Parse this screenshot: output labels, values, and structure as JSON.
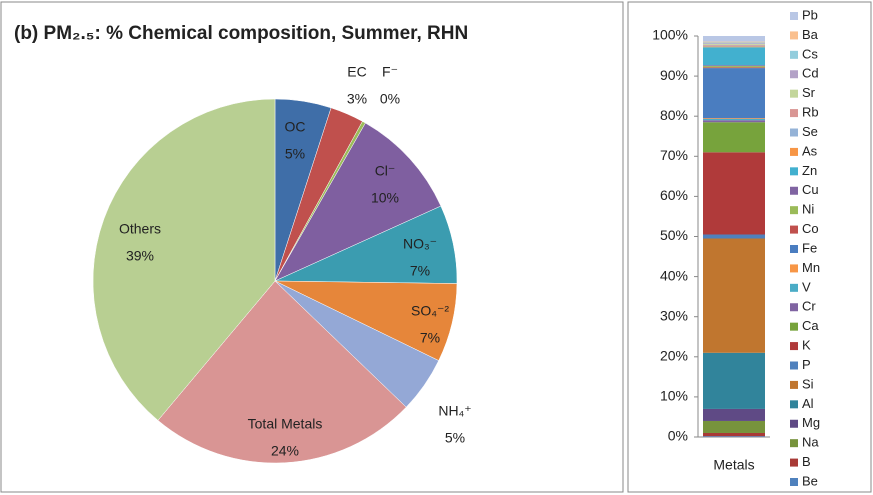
{
  "chart_data": [
    {
      "type": "pie",
      "title": "(b) PM₂.₅: % Chemical composition,  Summer, RHN",
      "categories": [
        "OC",
        "EC",
        "F⁻",
        "Cl⁻",
        "NO₃⁻",
        "SO₄⁻²",
        "NH₄⁺",
        "Total Metals",
        "Others"
      ],
      "values": [
        5,
        3,
        0.3,
        10,
        7,
        7,
        5,
        24,
        39
      ],
      "value_labels": [
        "5%",
        "3%",
        "0%",
        "10%",
        "7%",
        "7%",
        "5%",
        "24%",
        "39%"
      ],
      "colors": [
        "#3f6ea8",
        "#c0504d",
        "#9bbb59",
        "#7f5fa0",
        "#3b9cb0",
        "#e6863a",
        "#94a8d6",
        "#d99594",
        "#b8cf92"
      ]
    },
    {
      "type": "bar",
      "stacked": true,
      "categories": [
        "Metals"
      ],
      "ylim": [
        0,
        100
      ],
      "yticks": [
        {
          "value": 0,
          "label": "0%"
        },
        {
          "value": 10,
          "label": "10%"
        },
        {
          "value": 20,
          "label": "20%"
        },
        {
          "value": 30,
          "label": "30%"
        },
        {
          "value": 40,
          "label": "40%"
        },
        {
          "value": 50,
          "label": "50%"
        },
        {
          "value": 60,
          "label": "60%"
        },
        {
          "value": 70,
          "label": "70%"
        },
        {
          "value": 80,
          "label": "80%"
        },
        {
          "value": 90,
          "label": "90%"
        },
        {
          "value": 100,
          "label": "100%"
        }
      ],
      "legend": "right",
      "series": [
        {
          "name": "Be",
          "color": "#4f81bd",
          "values": [
            0.2
          ]
        },
        {
          "name": "B",
          "color": "#a83a36",
          "values": [
            0.8
          ]
        },
        {
          "name": "Na",
          "color": "#77933c",
          "values": [
            3
          ]
        },
        {
          "name": "Mg",
          "color": "#5f4a85",
          "values": [
            3
          ]
        },
        {
          "name": "Al",
          "color": "#31849b",
          "values": [
            14
          ]
        },
        {
          "name": "Si",
          "color": "#c0762f",
          "values": [
            28.5
          ]
        },
        {
          "name": "P",
          "color": "#4f81bd",
          "values": [
            1
          ]
        },
        {
          "name": "K",
          "color": "#b03a3a",
          "values": [
            20.5
          ]
        },
        {
          "name": "Ca",
          "color": "#77a33c",
          "values": [
            7.5
          ]
        },
        {
          "name": "Cr",
          "color": "#8064a2",
          "values": [
            0.5
          ]
        },
        {
          "name": "V",
          "color": "#4bacc6",
          "values": [
            0.3
          ]
        },
        {
          "name": "Mn",
          "color": "#f79646",
          "values": [
            0.2
          ]
        },
        {
          "name": "Fe",
          "color": "#4a7dc0",
          "values": [
            12.5
          ]
        },
        {
          "name": "Co",
          "color": "#c0504d",
          "values": [
            0.2
          ]
        },
        {
          "name": "Ni",
          "color": "#9bbb59",
          "values": [
            0.3
          ]
        },
        {
          "name": "Cu",
          "color": "#8064a2",
          "values": [
            0.2
          ]
        },
        {
          "name": "Zn",
          "color": "#42b0cf",
          "values": [
            4.5
          ]
        },
        {
          "name": "As",
          "color": "#f79646",
          "values": [
            0.2
          ]
        },
        {
          "name": "Se",
          "color": "#95b3d7",
          "values": [
            0.2
          ]
        },
        {
          "name": "Rb",
          "color": "#d99694",
          "values": [
            0.2
          ]
        },
        {
          "name": "Sr",
          "color": "#c3d69b",
          "values": [
            0.2
          ]
        },
        {
          "name": "Cd",
          "color": "#b3a2c7",
          "values": [
            0.2
          ]
        },
        {
          "name": "Cs",
          "color": "#93cddd",
          "values": [
            0.2
          ]
        },
        {
          "name": "Ba",
          "color": "#fac08f",
          "values": [
            0.2
          ]
        },
        {
          "name": "Pb",
          "color": "#b9c7e5",
          "values": [
            1.4
          ]
        }
      ]
    }
  ]
}
